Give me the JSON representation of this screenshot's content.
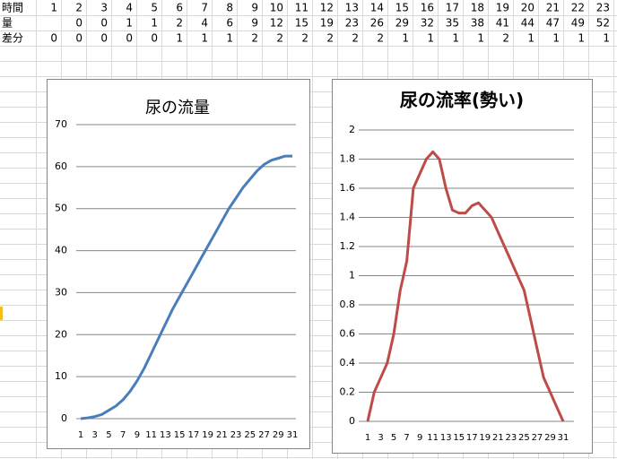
{
  "table": {
    "rows": [
      {
        "label": "時間",
        "cells": [
          1,
          2,
          3,
          4,
          5,
          6,
          7,
          8,
          9,
          10,
          11,
          12,
          13,
          14,
          15,
          16,
          17,
          18,
          19,
          20,
          21,
          22,
          23
        ]
      },
      {
        "label": "量",
        "cells": [
          null,
          0,
          0,
          1,
          1,
          2,
          4,
          6,
          9,
          12,
          15,
          19,
          23,
          26,
          29,
          32,
          35,
          38,
          41,
          44,
          47,
          49,
          52
        ]
      },
      {
        "label": "差分",
        "cells": [
          0,
          0,
          0,
          0,
          0,
          1,
          1,
          1,
          2,
          2,
          2,
          2,
          2,
          2,
          1,
          1,
          1,
          1,
          2,
          1,
          1,
          1,
          1
        ]
      }
    ]
  },
  "chart_data": [
    {
      "type": "line",
      "title": "尿の流量",
      "color": "#4a7ebb",
      "grid": true,
      "categories": [
        1,
        null,
        3,
        null,
        5,
        null,
        7,
        null,
        9,
        null,
        11,
        null,
        13,
        null,
        15,
        null,
        17,
        null,
        19,
        null,
        21,
        null,
        23,
        null,
        25,
        null,
        27,
        null,
        29,
        null,
        31
      ],
      "values": [
        0,
        0.2,
        0.5,
        1,
        2,
        3,
        4.5,
        6.5,
        9,
        12,
        15.5,
        19,
        22.5,
        26,
        29,
        32,
        35,
        38,
        41,
        44,
        47,
        50,
        52.5,
        55,
        57,
        59,
        60.5,
        61.5,
        62,
        62.5,
        62.5
      ],
      "ylim": [
        0,
        70
      ],
      "yticks": [
        0,
        10,
        20,
        30,
        40,
        50,
        60,
        70
      ]
    },
    {
      "type": "line",
      "title": "尿の流率(勢い)",
      "color": "#be4b48",
      "grid": true,
      "categories": [
        1,
        null,
        3,
        null,
        5,
        null,
        7,
        null,
        9,
        null,
        11,
        null,
        13,
        null,
        15,
        null,
        17,
        null,
        19,
        null,
        21,
        null,
        23,
        null,
        25,
        null,
        27,
        null,
        29,
        null,
        31
      ],
      "values": [
        0,
        0.2,
        0.3,
        0.4,
        0.6,
        0.9,
        1.1,
        1.6,
        1.7,
        1.8,
        1.85,
        1.8,
        1.6,
        1.45,
        1.43,
        1.43,
        1.48,
        1.5,
        1.45,
        1.4,
        1.3,
        1.2,
        1.1,
        1.0,
        0.9,
        0.7,
        0.5,
        0.3,
        0.2,
        0.1,
        0
      ],
      "ylim": [
        0,
        2
      ],
      "yticks": [
        0,
        0.2,
        0.4,
        0.6,
        0.8,
        1,
        1.2,
        1.4,
        1.6,
        1.8,
        2
      ]
    }
  ]
}
